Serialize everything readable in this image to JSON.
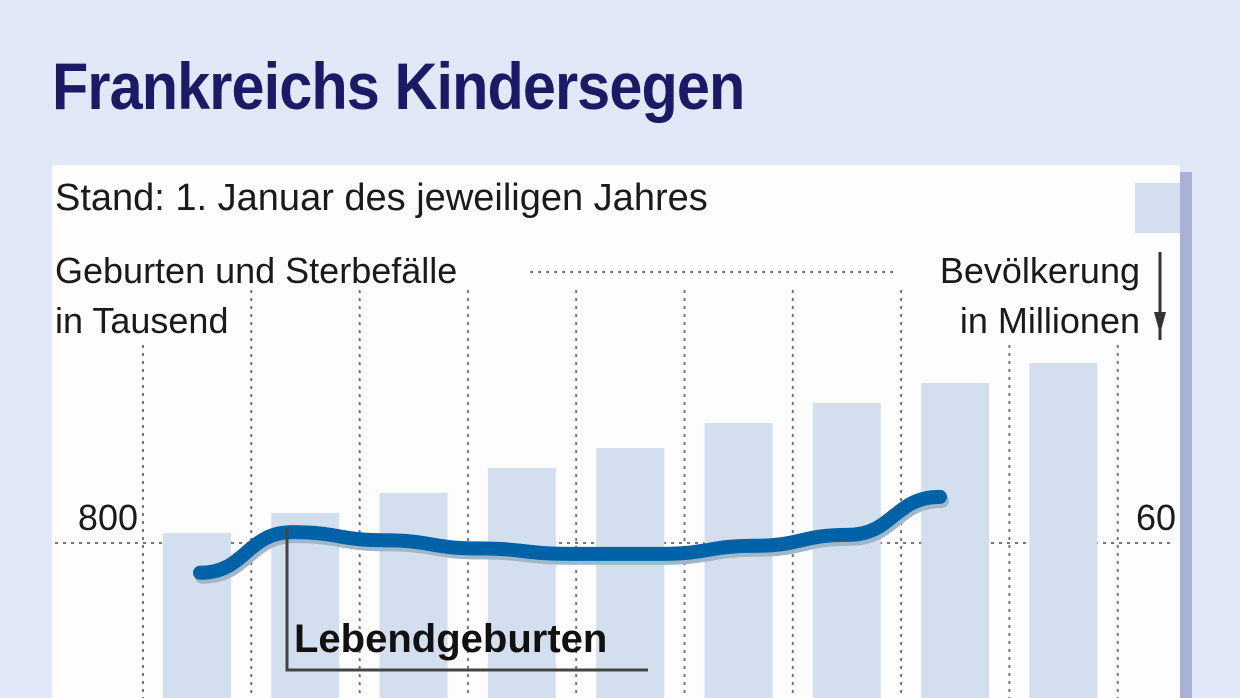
{
  "chart_data": {
    "type": "bar",
    "title": "Frankreichs Kindersegen",
    "subtitle": "Stand: 1. Januar des jeweiligen Jahres",
    "left_axis_label": [
      "Geburten und Sterbefälle",
      "in Tausend"
    ],
    "right_axis_label": [
      "Bevölkerung",
      "in Millionen"
    ],
    "left_ticks": [
      "800"
    ],
    "right_ticks": [
      "60"
    ],
    "left_ylim": [
      700,
      900
    ],
    "right_ylim": [
      55,
      65
    ],
    "grid": true,
    "series": [
      {
        "name": "Bevölkerung",
        "kind": "bar",
        "axis": "right",
        "color": "#d3dfee",
        "values": [
          60.2,
          60.6,
          61.0,
          61.5,
          61.9,
          62.4,
          62.8,
          63.2,
          63.6
        ]
      },
      {
        "name": "Lebendgeburten",
        "kind": "line",
        "axis": "left",
        "color": "#0062a6",
        "values": [
          789,
          804,
          801,
          798,
          796,
          796,
          799,
          803,
          817
        ],
        "label": "Lebendgeburten"
      }
    ]
  },
  "colors": {
    "title": "#1b1a66",
    "background": "#e1e9f9",
    "bar": "#d3dfee",
    "line": "#0062a6"
  }
}
